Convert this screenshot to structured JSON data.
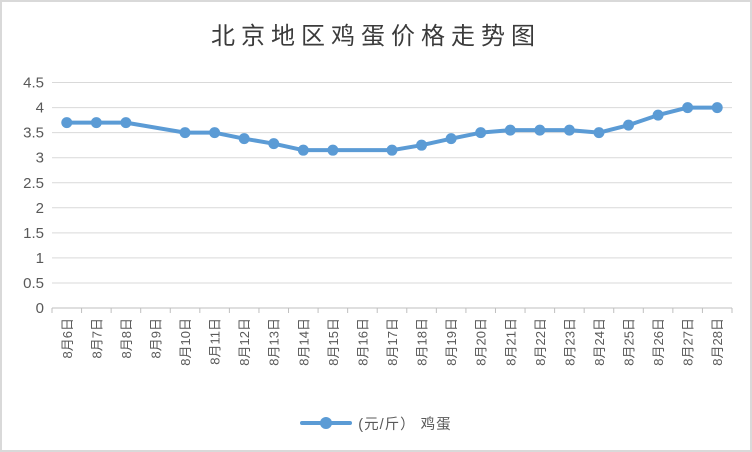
{
  "title": "北京地区鸡蛋价格走势图",
  "legend": {
    "label": "(元/斤） 鸡蛋"
  },
  "colors": {
    "series": "#5B9BD5",
    "gridline": "#D9D9D9",
    "axis": "#BFBFBF",
    "tick_label": "#595959",
    "title": "#3B3B3B",
    "background": "#FFFFFF",
    "frame_border": "#D9D9D9"
  },
  "chart_data": {
    "type": "line",
    "title": "北京地区鸡蛋价格走势图",
    "xlabel": "",
    "ylabel": "",
    "ylim": [
      0,
      4.5
    ],
    "ytick_step": 0.5,
    "ytick_labels": [
      "0",
      "0.5",
      "1",
      "1.5",
      "2",
      "2.5",
      "3",
      "3.5",
      "4",
      "4.5"
    ],
    "grid": true,
    "legend_position": "bottom",
    "marker": "circle",
    "gaps_connected": true,
    "categories": [
      "8月6日",
      "8月7日",
      "8月8日",
      "8月9日",
      "8月10日",
      "8月11日",
      "8月12日",
      "8月13日",
      "8月14日",
      "8月15日",
      "8月16日",
      "8月17日",
      "8月18日",
      "8月19日",
      "8月20日",
      "8月21日",
      "8月22日",
      "8月23日",
      "8月24日",
      "8月25日",
      "8月26日",
      "8月27日",
      "8月28日"
    ],
    "series": [
      {
        "name": "(元/斤） 鸡蛋",
        "color": "#5B9BD5",
        "values": [
          3.7,
          3.7,
          3.7,
          null,
          3.5,
          3.5,
          3.38,
          3.28,
          3.15,
          3.15,
          null,
          3.15,
          3.25,
          3.38,
          3.5,
          3.55,
          3.55,
          3.55,
          3.5,
          3.65,
          3.85,
          4.0,
          4.0
        ]
      }
    ]
  }
}
